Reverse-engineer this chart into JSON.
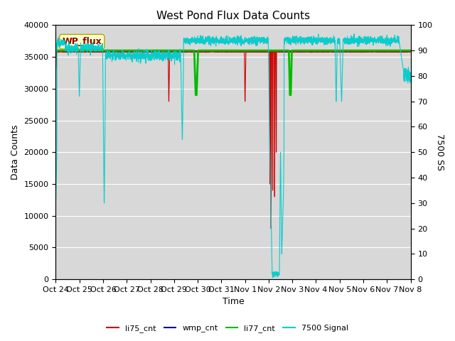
{
  "title": "West Pond Flux Data Counts",
  "ylabel_left": "Data Counts",
  "ylabel_right": "7500 SS",
  "xlabel": "Time",
  "ylim_left": [
    0,
    40000
  ],
  "ylim_right": [
    0,
    100
  ],
  "xlim": [
    0,
    15
  ],
  "fig_bg": "#ffffff",
  "plot_bg": "#d8d8d8",
  "grid_color": "#ffffff",
  "xtick_labels": [
    "Oct 24",
    "Oct 25",
    "Oct 26",
    "Oct 27",
    "Oct 28",
    "Oct 29",
    "Oct 30",
    "Oct 31",
    "Nov 1",
    "Nov 2",
    "Nov 3",
    "Nov 4",
    "Nov 5",
    "Nov 6",
    "Nov 7",
    "Nov 8"
  ],
  "xtick_positions": [
    0,
    1,
    2,
    3,
    4,
    5,
    6,
    7,
    8,
    9,
    10,
    11,
    12,
    13,
    14,
    15
  ],
  "legend_labels": [
    "li75_cnt",
    "wmp_cnt",
    "li77_cnt",
    "7500 Signal"
  ],
  "legend_colors": [
    "#cc0000",
    "#000099",
    "#00bb00",
    "#00cccc"
  ],
  "annotation_text": "WP_flux",
  "ytick_left": [
    0,
    5000,
    10000,
    15000,
    20000,
    25000,
    30000,
    35000,
    40000
  ],
  "ytick_right": [
    0,
    10,
    20,
    30,
    40,
    50,
    60,
    70,
    80,
    90,
    100
  ]
}
